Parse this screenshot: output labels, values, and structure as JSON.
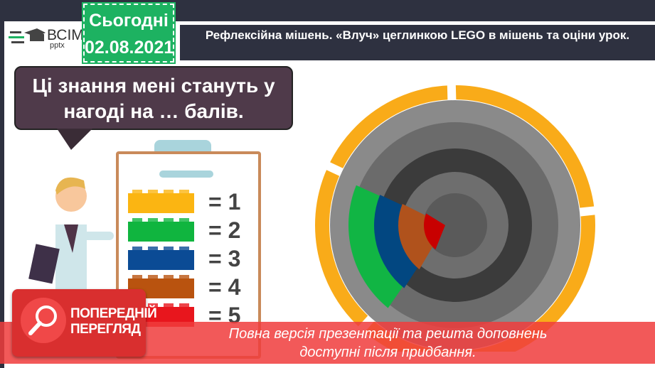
{
  "logo": {
    "text": "ВСІМ",
    "sub": "pptx"
  },
  "date_badge": {
    "label": "Сьогодні",
    "date": "02.08.2021"
  },
  "header": {
    "title": "Рефлексійна мішень. «Влуч» цеглинкою LEGO в мішень та оціни урок."
  },
  "bubble": {
    "line1": "Ці знання мені стануть у",
    "line2": "нагоді на … балів."
  },
  "scale": [
    {
      "color": "#fbb512",
      "label": "= 1"
    },
    {
      "color": "#10b53f",
      "label": "= 2"
    },
    {
      "color": "#0b4b95",
      "label": "= 3"
    },
    {
      "color": "#b9530f",
      "label": "= 4"
    },
    {
      "color": "#e8161d",
      "label": "= 5"
    }
  ],
  "target": {
    "ring_colors": [
      "#8a8a8a",
      "#6b6b6b",
      "#3b3b3b",
      "#6e6e6e",
      "#5a5a5a"
    ],
    "outer_ring": "#f9ab19",
    "sector_colors": [
      "#11b544",
      "#024781",
      "#b0521c",
      "#c80000"
    ]
  },
  "preview": {
    "line1": "ПОПЕРЕДНІЙ",
    "line2": "ПЕРЕГЛЯД"
  },
  "banner": {
    "line1": "Повна версія презентації та решта доповнень",
    "line2": "доступні після придбання."
  }
}
